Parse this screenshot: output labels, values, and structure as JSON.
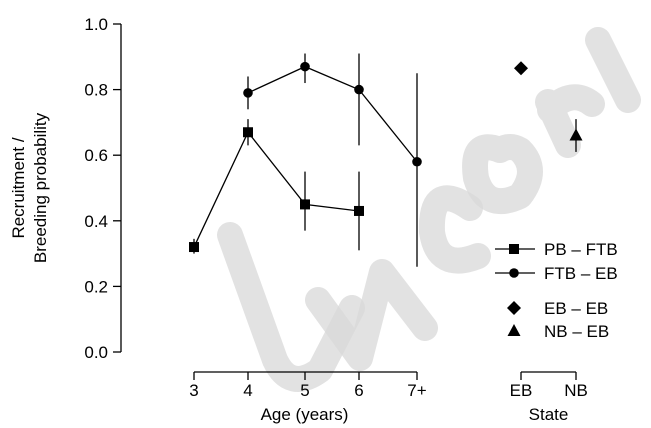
{
  "chart_data": {
    "type": "scatter",
    "title": "",
    "ylabel_lines": [
      "Recruitment /",
      "Breeding probability"
    ],
    "ylim": [
      0,
      1.0
    ],
    "yticks": [
      0.0,
      0.2,
      0.4,
      0.6,
      0.8,
      1.0
    ],
    "ytick_labels": [
      "0.0",
      "0.2",
      "0.4",
      "0.6",
      "0.8",
      "1.0"
    ],
    "panels": [
      {
        "xlabel": "Age (years)",
        "categories": [
          "3",
          "4",
          "5",
          "6",
          "7+"
        ]
      },
      {
        "xlabel": "State",
        "categories": [
          "EB",
          "NB"
        ]
      }
    ],
    "series": [
      {
        "name": "PB – FTB",
        "marker": "square",
        "panel": 0,
        "connected": true,
        "points": [
          {
            "x": "3",
            "y": 0.32,
            "lo": 0.3,
            "hi": 0.345
          },
          {
            "x": "4",
            "y": 0.67,
            "lo": 0.63,
            "hi": 0.71
          },
          {
            "x": "5",
            "y": 0.45,
            "lo": 0.37,
            "hi": 0.55
          },
          {
            "x": "6",
            "y": 0.43,
            "lo": 0.31,
            "hi": 0.55
          }
        ]
      },
      {
        "name": "FTB – EB",
        "marker": "circle",
        "panel": 0,
        "connected": true,
        "points": [
          {
            "x": "4",
            "y": 0.79,
            "lo": 0.74,
            "hi": 0.84
          },
          {
            "x": "5",
            "y": 0.87,
            "lo": 0.82,
            "hi": 0.91
          },
          {
            "x": "6",
            "y": 0.8,
            "lo": 0.63,
            "hi": 0.91
          },
          {
            "x": "7+",
            "y": 0.58,
            "lo": 0.26,
            "hi": 0.85
          }
        ]
      },
      {
        "name": "EB – EB",
        "marker": "diamond",
        "panel": 1,
        "connected": false,
        "points": [
          {
            "x": "EB",
            "y": 0.865,
            "lo": 0.85,
            "hi": 0.88
          }
        ]
      },
      {
        "name": "NB – EB",
        "marker": "triangle",
        "panel": 1,
        "connected": false,
        "points": [
          {
            "x": "NB",
            "y": 0.66,
            "lo": 0.61,
            "hi": 0.71
          }
        ]
      }
    ],
    "legend_position": "lower-right",
    "grid": false
  }
}
